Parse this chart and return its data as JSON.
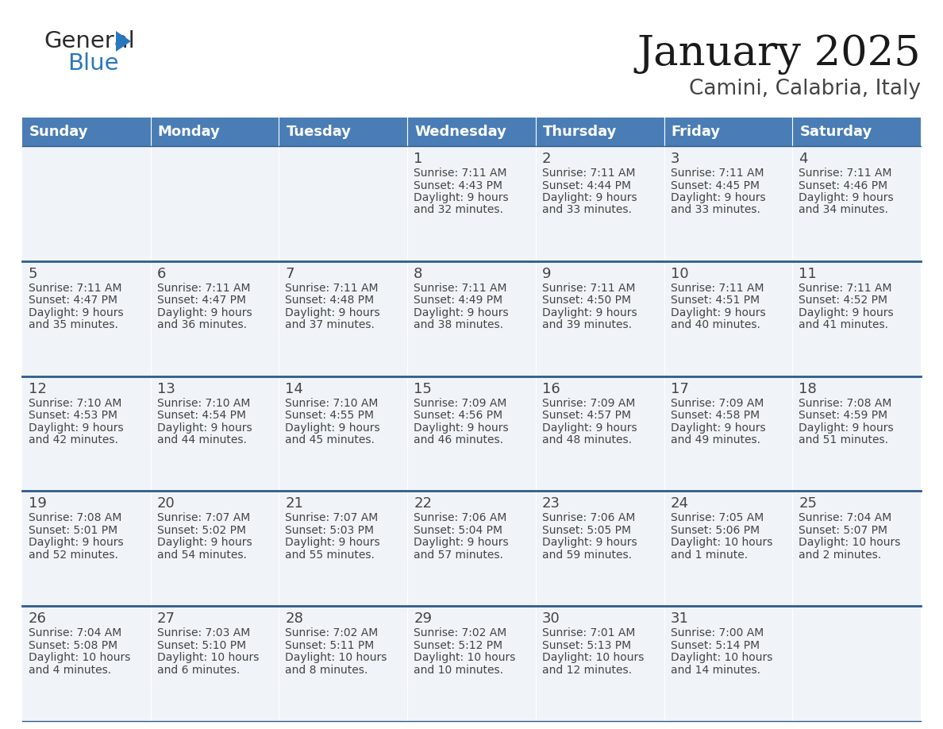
{
  "title": "January 2025",
  "subtitle": "Camini, Calabria, Italy",
  "days_of_week": [
    "Sunday",
    "Monday",
    "Tuesday",
    "Wednesday",
    "Thursday",
    "Friday",
    "Saturday"
  ],
  "header_bg": "#4a7db5",
  "header_text": "#ffffff",
  "row_bg": "#f0f4f8",
  "divider_color": "#2e5c8a",
  "text_color": "#444444",
  "cell_data": [
    {
      "day": null,
      "row": 0,
      "col": 0
    },
    {
      "day": null,
      "row": 0,
      "col": 1
    },
    {
      "day": null,
      "row": 0,
      "col": 2
    },
    {
      "day": 1,
      "row": 0,
      "col": 3,
      "sunrise": "7:11 AM",
      "sunset": "4:43 PM",
      "daylight": "9 hours and 32 minutes."
    },
    {
      "day": 2,
      "row": 0,
      "col": 4,
      "sunrise": "7:11 AM",
      "sunset": "4:44 PM",
      "daylight": "9 hours and 33 minutes."
    },
    {
      "day": 3,
      "row": 0,
      "col": 5,
      "sunrise": "7:11 AM",
      "sunset": "4:45 PM",
      "daylight": "9 hours and 33 minutes."
    },
    {
      "day": 4,
      "row": 0,
      "col": 6,
      "sunrise": "7:11 AM",
      "sunset": "4:46 PM",
      "daylight": "9 hours and 34 minutes."
    },
    {
      "day": 5,
      "row": 1,
      "col": 0,
      "sunrise": "7:11 AM",
      "sunset": "4:47 PM",
      "daylight": "9 hours and 35 minutes."
    },
    {
      "day": 6,
      "row": 1,
      "col": 1,
      "sunrise": "7:11 AM",
      "sunset": "4:47 PM",
      "daylight": "9 hours and 36 minutes."
    },
    {
      "day": 7,
      "row": 1,
      "col": 2,
      "sunrise": "7:11 AM",
      "sunset": "4:48 PM",
      "daylight": "9 hours and 37 minutes."
    },
    {
      "day": 8,
      "row": 1,
      "col": 3,
      "sunrise": "7:11 AM",
      "sunset": "4:49 PM",
      "daylight": "9 hours and 38 minutes."
    },
    {
      "day": 9,
      "row": 1,
      "col": 4,
      "sunrise": "7:11 AM",
      "sunset": "4:50 PM",
      "daylight": "9 hours and 39 minutes."
    },
    {
      "day": 10,
      "row": 1,
      "col": 5,
      "sunrise": "7:11 AM",
      "sunset": "4:51 PM",
      "daylight": "9 hours and 40 minutes."
    },
    {
      "day": 11,
      "row": 1,
      "col": 6,
      "sunrise": "7:11 AM",
      "sunset": "4:52 PM",
      "daylight": "9 hours and 41 minutes."
    },
    {
      "day": 12,
      "row": 2,
      "col": 0,
      "sunrise": "7:10 AM",
      "sunset": "4:53 PM",
      "daylight": "9 hours and 42 minutes."
    },
    {
      "day": 13,
      "row": 2,
      "col": 1,
      "sunrise": "7:10 AM",
      "sunset": "4:54 PM",
      "daylight": "9 hours and 44 minutes."
    },
    {
      "day": 14,
      "row": 2,
      "col": 2,
      "sunrise": "7:10 AM",
      "sunset": "4:55 PM",
      "daylight": "9 hours and 45 minutes."
    },
    {
      "day": 15,
      "row": 2,
      "col": 3,
      "sunrise": "7:09 AM",
      "sunset": "4:56 PM",
      "daylight": "9 hours and 46 minutes."
    },
    {
      "day": 16,
      "row": 2,
      "col": 4,
      "sunrise": "7:09 AM",
      "sunset": "4:57 PM",
      "daylight": "9 hours and 48 minutes."
    },
    {
      "day": 17,
      "row": 2,
      "col": 5,
      "sunrise": "7:09 AM",
      "sunset": "4:58 PM",
      "daylight": "9 hours and 49 minutes."
    },
    {
      "day": 18,
      "row": 2,
      "col": 6,
      "sunrise": "7:08 AM",
      "sunset": "4:59 PM",
      "daylight": "9 hours and 51 minutes."
    },
    {
      "day": 19,
      "row": 3,
      "col": 0,
      "sunrise": "7:08 AM",
      "sunset": "5:01 PM",
      "daylight": "9 hours and 52 minutes."
    },
    {
      "day": 20,
      "row": 3,
      "col": 1,
      "sunrise": "7:07 AM",
      "sunset": "5:02 PM",
      "daylight": "9 hours and 54 minutes."
    },
    {
      "day": 21,
      "row": 3,
      "col": 2,
      "sunrise": "7:07 AM",
      "sunset": "5:03 PM",
      "daylight": "9 hours and 55 minutes."
    },
    {
      "day": 22,
      "row": 3,
      "col": 3,
      "sunrise": "7:06 AM",
      "sunset": "5:04 PM",
      "daylight": "9 hours and 57 minutes."
    },
    {
      "day": 23,
      "row": 3,
      "col": 4,
      "sunrise": "7:06 AM",
      "sunset": "5:05 PM",
      "daylight": "9 hours and 59 minutes."
    },
    {
      "day": 24,
      "row": 3,
      "col": 5,
      "sunrise": "7:05 AM",
      "sunset": "5:06 PM",
      "daylight": "10 hours and 1 minute."
    },
    {
      "day": 25,
      "row": 3,
      "col": 6,
      "sunrise": "7:04 AM",
      "sunset": "5:07 PM",
      "daylight": "10 hours and 2 minutes."
    },
    {
      "day": 26,
      "row": 4,
      "col": 0,
      "sunrise": "7:04 AM",
      "sunset": "5:08 PM",
      "daylight": "10 hours and 4 minutes."
    },
    {
      "day": 27,
      "row": 4,
      "col": 1,
      "sunrise": "7:03 AM",
      "sunset": "5:10 PM",
      "daylight": "10 hours and 6 minutes."
    },
    {
      "day": 28,
      "row": 4,
      "col": 2,
      "sunrise": "7:02 AM",
      "sunset": "5:11 PM",
      "daylight": "10 hours and 8 minutes."
    },
    {
      "day": 29,
      "row": 4,
      "col": 3,
      "sunrise": "7:02 AM",
      "sunset": "5:12 PM",
      "daylight": "10 hours and 10 minutes."
    },
    {
      "day": 30,
      "row": 4,
      "col": 4,
      "sunrise": "7:01 AM",
      "sunset": "5:13 PM",
      "daylight": "10 hours and 12 minutes."
    },
    {
      "day": 31,
      "row": 4,
      "col": 5,
      "sunrise": "7:00 AM",
      "sunset": "5:14 PM",
      "daylight": "10 hours and 14 minutes."
    }
  ],
  "num_rows": 5,
  "num_cols": 7,
  "title_fontsize": 38,
  "subtitle_fontsize": 19,
  "header_fontsize": 13,
  "day_num_fontsize": 13,
  "cell_text_fontsize": 10,
  "logo_color_general": "#2b2b2b",
  "logo_color_blue": "#2878bf",
  "logo_triangle_color": "#2878bf"
}
